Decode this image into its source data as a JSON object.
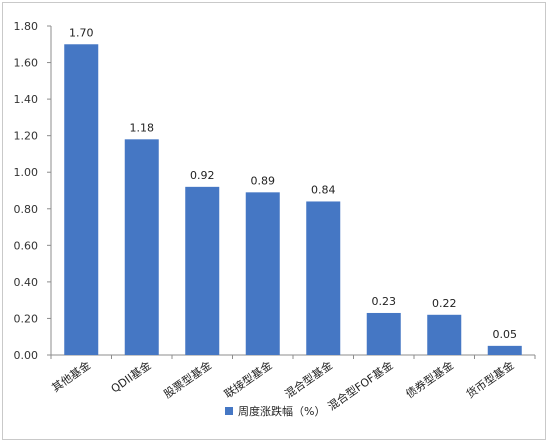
{
  "chart_data": {
    "type": "bar",
    "categories": [
      "其他基金",
      "QDII基金",
      "股票型基金",
      "联接型基金",
      "混合型基金",
      "混合型FOF基金",
      "债券型基金",
      "货币型基金"
    ],
    "series": [
      {
        "name": "周度涨跌幅（%）",
        "values": [
          1.7,
          1.18,
          0.92,
          0.89,
          0.84,
          0.23,
          0.22,
          0.05
        ]
      }
    ],
    "value_labels": [
      "1.70",
      "1.18",
      "0.92",
      "0.89",
      "0.84",
      "0.23",
      "0.22",
      "0.05"
    ],
    "ylim": [
      0,
      1.8
    ],
    "yticks": [
      "0.00",
      "0.20",
      "0.40",
      "0.60",
      "0.80",
      "1.00",
      "1.20",
      "1.40",
      "1.60",
      "1.80"
    ],
    "grid": false,
    "legend_position": "bottom",
    "colors": {
      "bar": "#4577C4",
      "axis": "#8c8c8c"
    }
  }
}
